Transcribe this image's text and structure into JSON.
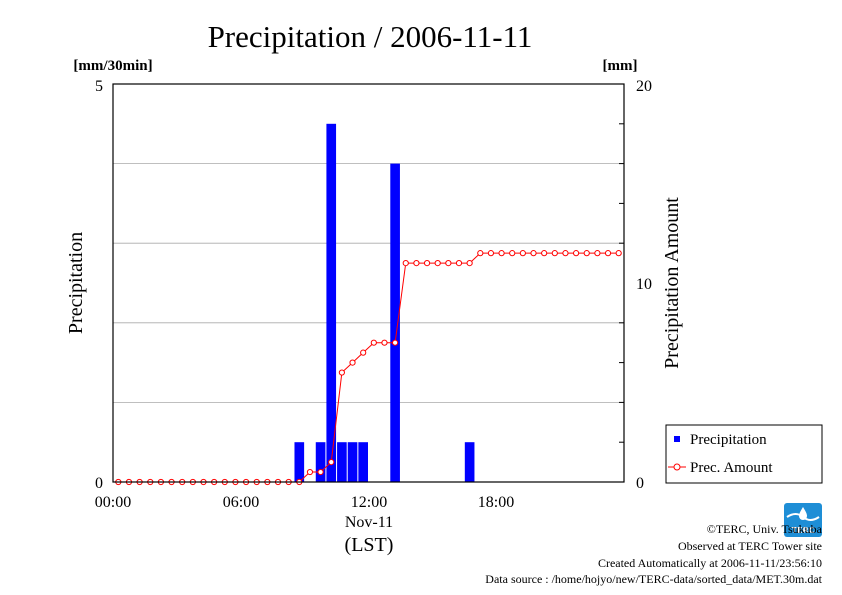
{
  "chart_data": {
    "type": "bar+line",
    "title": "Precipitation / 2006-11-11",
    "xlabel": "(LST)",
    "x_date_label": "Nov-11",
    "x_tick_labels": [
      "00:00",
      "06:00",
      "12:00",
      "18:00"
    ],
    "xlim": [
      "00:00",
      "24:00"
    ],
    "left_axis": {
      "label": "Precipitation",
      "unit": "[mm/30min]",
      "ylim": [
        0,
        5
      ],
      "tick_labels": [
        "0",
        "5"
      ]
    },
    "right_axis": {
      "label": "Precipitation Amount",
      "unit": "[mm]",
      "ylim": [
        0,
        20
      ],
      "tick_labels": [
        "0",
        "10",
        "20"
      ]
    },
    "grid": true,
    "legend_position": "right",
    "x": [
      "00:00",
      "00:30",
      "01:00",
      "01:30",
      "02:00",
      "02:30",
      "03:00",
      "03:30",
      "04:00",
      "04:30",
      "05:00",
      "05:30",
      "06:00",
      "06:30",
      "07:00",
      "07:30",
      "08:00",
      "08:30",
      "09:00",
      "09:30",
      "10:00",
      "10:30",
      "11:00",
      "11:30",
      "12:00",
      "12:30",
      "13:00",
      "13:30",
      "14:00",
      "14:30",
      "15:00",
      "15:30",
      "16:00",
      "16:30",
      "17:00",
      "17:30",
      "18:00",
      "18:30",
      "19:00",
      "19:30",
      "20:00",
      "20:30",
      "21:00",
      "21:30",
      "22:00",
      "22:30",
      "23:00",
      "23:30"
    ],
    "series": [
      {
        "name": "Precipitation",
        "type": "bar",
        "axis": "left",
        "color": "#0000ff",
        "values": [
          0,
          0,
          0,
          0,
          0,
          0,
          0,
          0,
          0,
          0,
          0,
          0,
          0,
          0,
          0,
          0,
          0,
          0.5,
          0,
          0.5,
          4.5,
          0.5,
          0.5,
          0.5,
          0,
          0,
          4,
          0,
          0,
          0,
          0,
          0,
          0,
          0.5,
          0,
          0,
          0,
          0,
          0,
          0,
          0,
          0,
          0,
          0,
          0,
          0,
          0,
          0
        ]
      },
      {
        "name": "Prec. Amount",
        "type": "line",
        "axis": "right",
        "color": "#ff0000",
        "values": [
          0,
          0,
          0,
          0,
          0,
          0,
          0,
          0,
          0,
          0,
          0,
          0,
          0,
          0,
          0,
          0,
          0,
          0,
          0.5,
          0.5,
          1,
          5.5,
          6,
          6.5,
          7,
          7,
          7,
          11,
          11,
          11,
          11,
          11,
          11,
          11,
          11.5,
          11.5,
          11.5,
          11.5,
          11.5,
          11.5,
          11.5,
          11.5,
          11.5,
          11.5,
          11.5,
          11.5,
          11.5,
          11.5
        ]
      }
    ]
  },
  "credits": {
    "copyright": "©TERC, Univ. Tsukuba",
    "observed": "Observed at TERC Tower site",
    "created": "Created Automatically at 2006-11-11/23:56:10",
    "source": "Data source : /home/hojyo/new/TERC-data/sorted_data/MET.30m.dat"
  },
  "logo": {
    "text": "TERC",
    "color": "#1e8ed6"
  }
}
